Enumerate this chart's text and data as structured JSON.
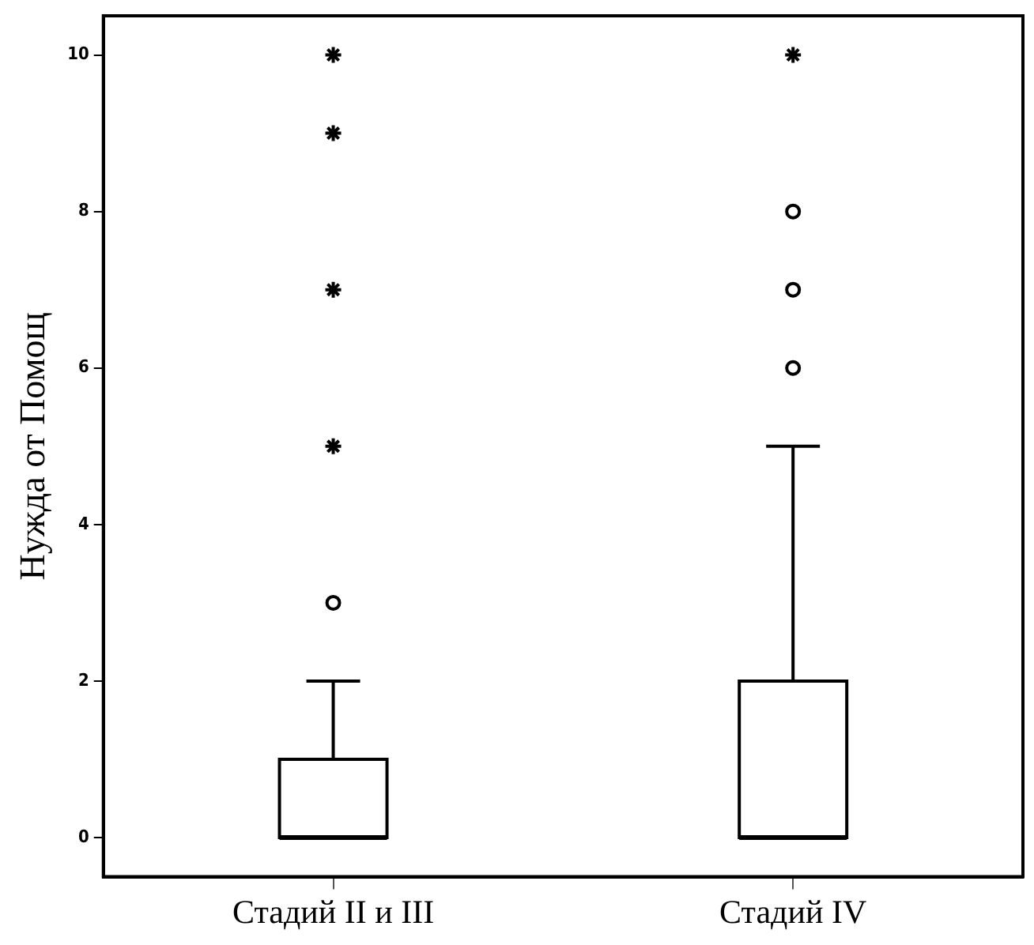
{
  "chart_data": {
    "type": "box",
    "ylabel": "Нужда от Помощ",
    "categories": [
      "Стадий II и III",
      "Стадий IV"
    ],
    "boxes": [
      {
        "low": 0,
        "q1": 0,
        "median": 0,
        "q3": 1,
        "high": 2,
        "outliers": [
          3
        ]
      },
      {
        "low": 0,
        "q1": 0,
        "median": 0,
        "q3": 2,
        "high": 5,
        "outliers": [
          6,
          7,
          8
        ]
      }
    ],
    "series": [
      {
        "type": "scatter",
        "marker": "cross",
        "color": "#000000",
        "x": [
          "Стадий II и III",
          "Стадий II и III",
          "Стадий II и III",
          "Стадий II и III",
          "Стадий IV"
        ],
        "values": [
          5,
          7,
          9,
          10,
          10
        ]
      }
    ],
    "ylim": [
      -0.5,
      10.5
    ],
    "yticks": [
      0,
      2,
      4,
      6,
      8,
      10
    ],
    "grid": false
  }
}
